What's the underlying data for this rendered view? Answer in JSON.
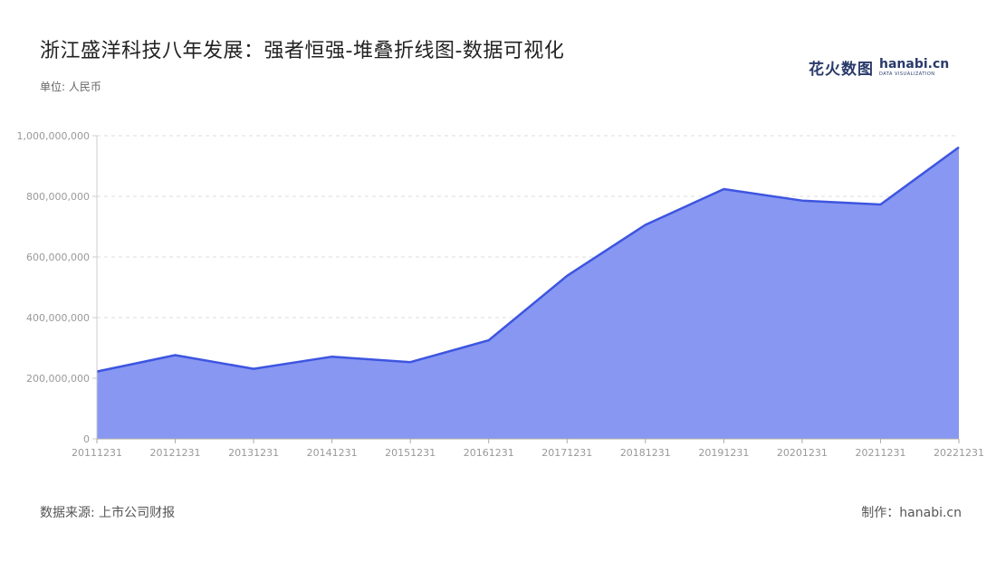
{
  "title": "浙江盛洋科技八年发展：强者恒强-堆叠折线图-数据可视化",
  "unit_label": "单位: 人民币",
  "source_label": "数据来源: 上市公司财报",
  "credit_label": "制作：hanabi.cn",
  "logo": {
    "cn": "花火数图",
    "en": "hanabi.cn",
    "sub": "DATA VISUALIZATION"
  },
  "colors": {
    "line": "#3d55e0",
    "fill": "#8897f2",
    "grid": "#dddddd",
    "axis": "#cccccc"
  },
  "chart_data": {
    "type": "area",
    "title": "浙江盛洋科技八年发展：强者恒强-堆叠折线图-数据可视化",
    "xlabel": "",
    "ylabel": "单位: 人民币",
    "ylim": [
      0,
      1000000000
    ],
    "yticks": [
      0,
      200000000,
      400000000,
      600000000,
      800000000,
      1000000000
    ],
    "ytick_labels": [
      "0",
      "200,000,000",
      "400,000,000",
      "600,000,000",
      "800,000,000",
      "1,000,000,000"
    ],
    "grid": true,
    "categories": [
      "20111231",
      "20121231",
      "20131231",
      "20141231",
      "20151231",
      "20161231",
      "20171231",
      "20181231",
      "20191231",
      "20201231",
      "20211231",
      "20221231"
    ],
    "series": [
      {
        "values": [
          222000000,
          276000000,
          231000000,
          271000000,
          253000000,
          325000000,
          538000000,
          706000000,
          824000000,
          786000000,
          773000000,
          962000000
        ]
      }
    ]
  }
}
